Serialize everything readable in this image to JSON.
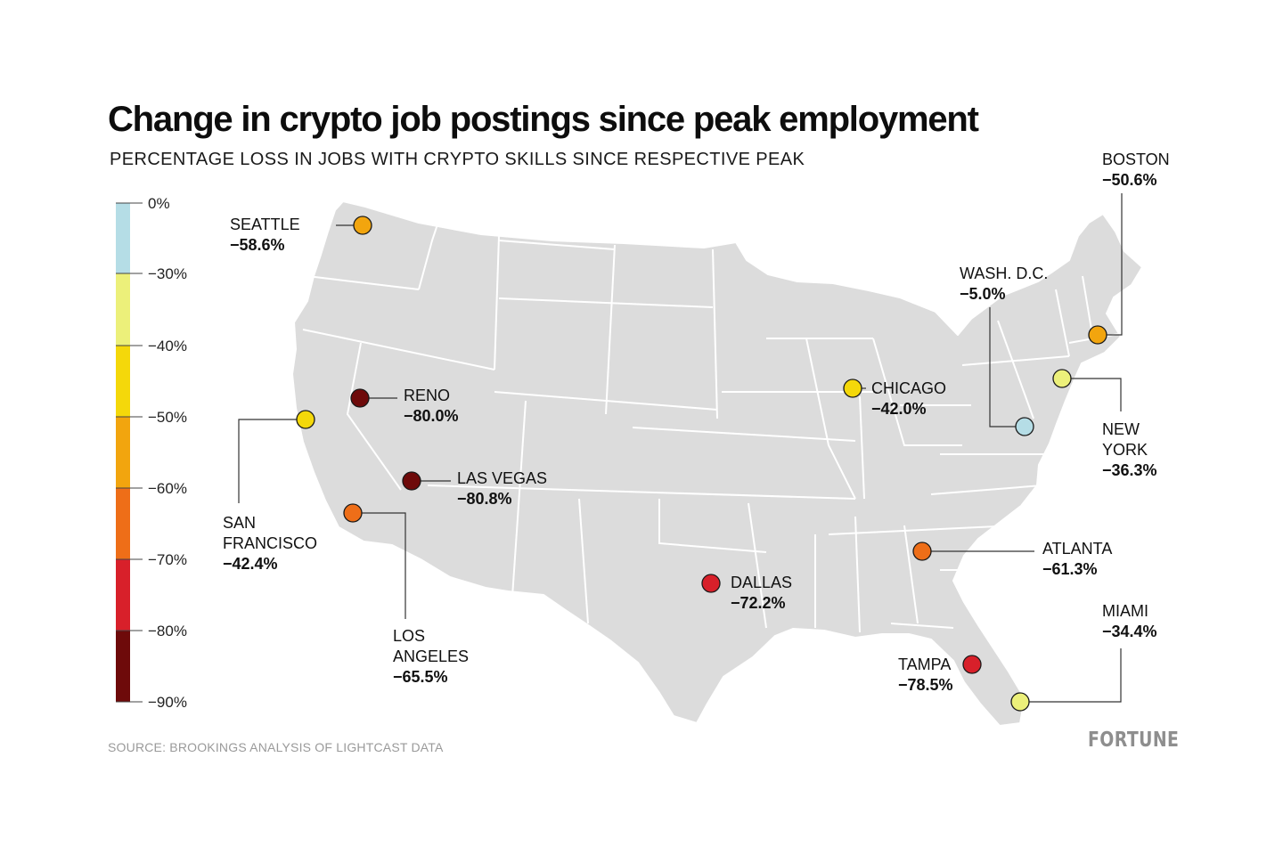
{
  "title": "Change in crypto job postings since peak employment",
  "subtitle": "PERCENTAGE LOSS IN JOBS WITH CRYPTO SKILLS SINCE RESPECTIVE PEAK",
  "source": "SOURCE: BROOKINGS ANALYSIS OF LIGHTCAST DATA",
  "brand": "FORTUNE",
  "legend": {
    "ticks": [
      "0%",
      "−30%",
      "−40%",
      "−50%",
      "−60%",
      "−70%",
      "−80%",
      "−90%"
    ],
    "bands": [
      {
        "from": 0,
        "to": -30,
        "color": "#b5dde6"
      },
      {
        "from": -30,
        "to": -40,
        "color": "#ecf07a"
      },
      {
        "from": -40,
        "to": -50,
        "color": "#f4d80a"
      },
      {
        "from": -50,
        "to": -60,
        "color": "#f2a50e"
      },
      {
        "from": -60,
        "to": -70,
        "color": "#ee6e18"
      },
      {
        "from": -70,
        "to": -80,
        "color": "#d8202a"
      },
      {
        "from": -80,
        "to": -90,
        "color": "#6e0a0a"
      }
    ]
  },
  "cities": [
    {
      "name_lines": [
        "SEATTLE"
      ],
      "value": "−58.6%",
      "change": -58.6,
      "color": "#f2a50e"
    },
    {
      "name_lines": [
        "RENO"
      ],
      "value": "−80.0%",
      "change": -80.0,
      "color": "#6e0a0a"
    },
    {
      "name_lines": [
        "SAN",
        "FRANCISCO"
      ],
      "value": "−42.4%",
      "change": -42.4,
      "color": "#f4d80a"
    },
    {
      "name_lines": [
        "LAS VEGAS"
      ],
      "value": "−80.8%",
      "change": -80.8,
      "color": "#6e0a0a"
    },
    {
      "name_lines": [
        "LOS",
        "ANGELES"
      ],
      "value": "−65.5%",
      "change": -65.5,
      "color": "#ee6e18"
    },
    {
      "name_lines": [
        "DALLAS"
      ],
      "value": "−72.2%",
      "change": -72.2,
      "color": "#d8202a"
    },
    {
      "name_lines": [
        "CHICAGO"
      ],
      "value": "−42.0%",
      "change": -42.0,
      "color": "#f4d80a"
    },
    {
      "name_lines": [
        "WASH. D.C."
      ],
      "value": "−5.0%",
      "change": -5.0,
      "color": "#b5dde6"
    },
    {
      "name_lines": [
        "BOSTON"
      ],
      "value": "−50.6%",
      "change": -50.6,
      "color": "#f2a50e"
    },
    {
      "name_lines": [
        "NEW",
        "YORK"
      ],
      "value": "−36.3%",
      "change": -36.3,
      "color": "#ecf07a"
    },
    {
      "name_lines": [
        "ATLANTA"
      ],
      "value": "−61.3%",
      "change": -61.3,
      "color": "#ee6e18"
    },
    {
      "name_lines": [
        "MIAMI"
      ],
      "value": "−34.4%",
      "change": -34.4,
      "color": "#ecf07a"
    },
    {
      "name_lines": [
        "TAMPA"
      ],
      "value": "−78.5%",
      "change": -78.5,
      "color": "#d8202a"
    }
  ]
}
